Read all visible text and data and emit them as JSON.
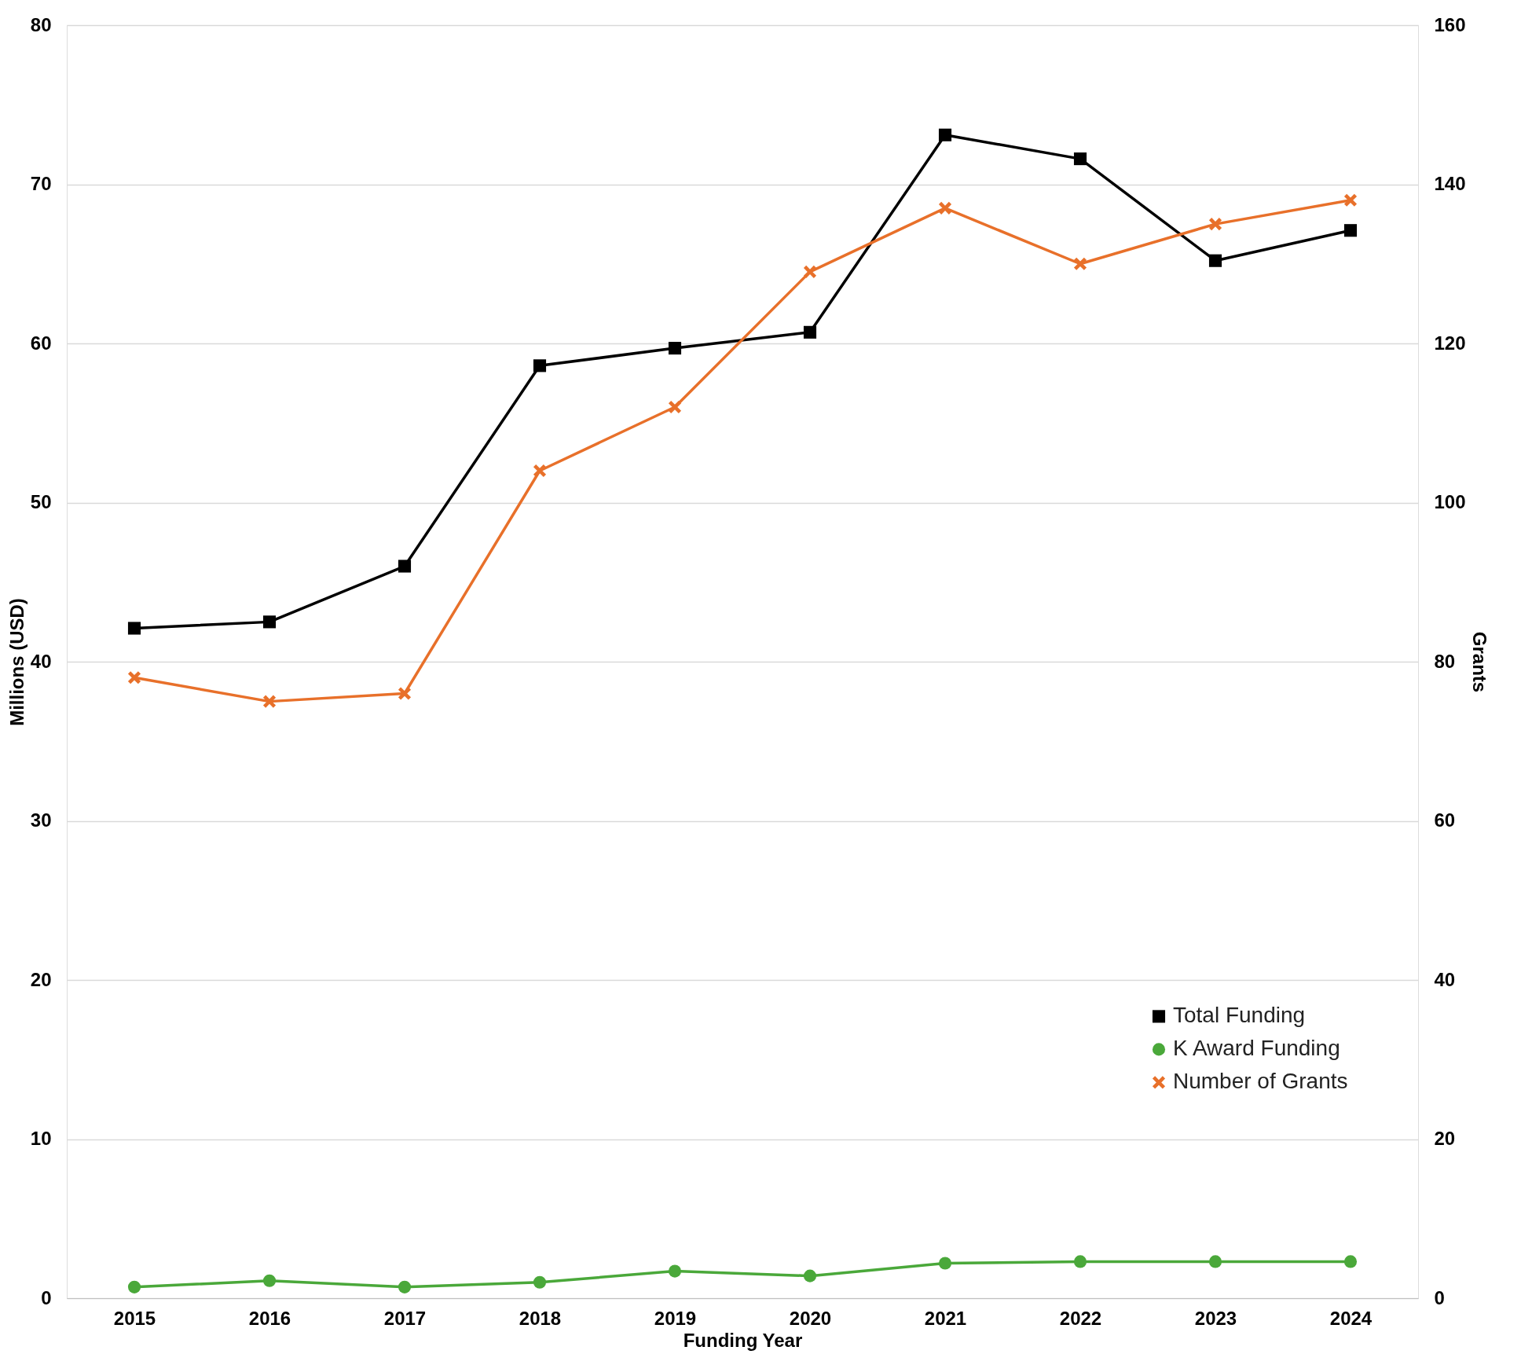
{
  "chart_data": {
    "type": "line",
    "xlabel": "Funding Year",
    "ylabel": "Millions (USD)",
    "y2label": "Grants",
    "categories": [
      "2015",
      "2016",
      "2017",
      "2018",
      "2019",
      "2020",
      "2021",
      "2022",
      "2023",
      "2024"
    ],
    "series": [
      {
        "name": "Total Funding",
        "color": "#000000",
        "marker": "square",
        "values": [
          42.1,
          42.5,
          46.0,
          58.6,
          59.7,
          60.7,
          73.1,
          71.6,
          65.2,
          67.1
        ]
      },
      {
        "name": "K Award Funding",
        "color": "#4aa83a",
        "marker": "circle",
        "values": [
          0.7,
          1.1,
          0.7,
          1.0,
          1.7,
          1.4,
          2.2,
          2.3,
          2.3,
          2.3
        ]
      },
      {
        "name": "Number of Grants",
        "color": "#e8702a",
        "marker": "cross",
        "axis": "y2",
        "values": [
          78,
          75,
          76,
          104,
          112,
          129,
          137,
          130,
          135,
          138
        ]
      }
    ],
    "ylim": [
      0,
      80
    ],
    "yticks": [
      0,
      10,
      20,
      30,
      40,
      50,
      60,
      70,
      80
    ],
    "y2lim": [
      0,
      160
    ],
    "y2ticks": [
      0,
      20,
      40,
      60,
      80,
      100,
      120,
      140,
      160
    ],
    "grid": "y",
    "legend": "bottom right",
    "line_style": "solid"
  }
}
